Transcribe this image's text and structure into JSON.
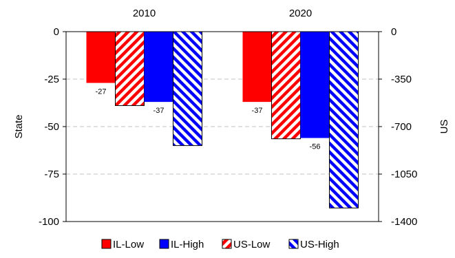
{
  "chart_data": {
    "type": "bar",
    "categories": [
      "2010",
      "2020"
    ],
    "series": [
      {
        "name": "IL-Low",
        "axis": "left",
        "pattern": "solid",
        "color": "#ff0000",
        "values": [
          -27,
          -37
        ],
        "labels": [
          "-27",
          "-37"
        ]
      },
      {
        "name": "US-Low",
        "axis": "right",
        "pattern": "hatch",
        "color": "#ff0000",
        "values": [
          -545,
          -790
        ],
        "labels": [
          "",
          ""
        ]
      },
      {
        "name": "IL-High",
        "axis": "left",
        "pattern": "solid",
        "color": "#0000ff",
        "values": [
          -37,
          -56
        ],
        "labels": [
          "-37",
          "-56"
        ]
      },
      {
        "name": "US-High",
        "axis": "right",
        "pattern": "hatch",
        "color": "#0000ff",
        "values": [
          -840,
          -1300
        ],
        "labels": [
          "",
          ""
        ]
      }
    ],
    "left_axis": {
      "title": "State",
      "range": [
        -100,
        0
      ],
      "ticks": [
        "0",
        "-25",
        "-50",
        "-75",
        "-100"
      ]
    },
    "right_axis": {
      "title": "US",
      "range": [
        -1400,
        0
      ],
      "ticks": [
        "0",
        "-350",
        "-700",
        "-1050",
        "-1400"
      ]
    },
    "legend": {
      "placement": "bottom",
      "items": [
        "IL-Low",
        "IL-High",
        "US-Low",
        "US-High"
      ]
    },
    "grid": true
  }
}
